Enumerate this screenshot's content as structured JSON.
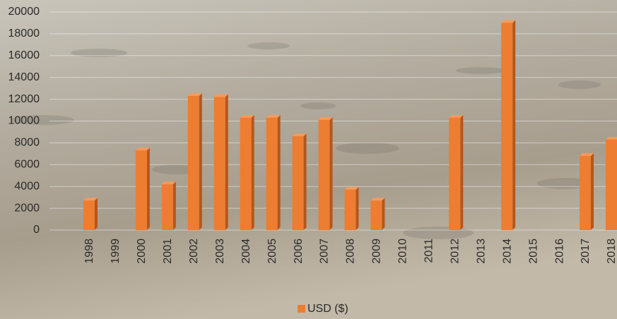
{
  "chart_data": {
    "type": "bar",
    "categories": [
      "1998",
      "1999",
      "2000",
      "2001",
      "2002",
      "2003",
      "2004",
      "2005",
      "2006",
      "2007",
      "2008",
      "2009",
      "2010",
      "2011",
      "2012",
      "2013",
      "2014",
      "2015",
      "2016",
      "2017",
      "2018"
    ],
    "series": [
      {
        "name": "USD ($)",
        "color": "#ed7d31",
        "values": [
          2700,
          null,
          7300,
          4200,
          12300,
          12200,
          10300,
          10300,
          8600,
          10100,
          3700,
          2700,
          null,
          null,
          10300,
          null,
          19000,
          null,
          null,
          6800,
          8300
        ]
      }
    ],
    "ylim": [
      0,
      20000
    ],
    "yticks": [
      0,
      2000,
      4000,
      6000,
      8000,
      10000,
      12000,
      14000,
      16000,
      18000,
      20000
    ],
    "grid": true,
    "legend": "bottom"
  }
}
